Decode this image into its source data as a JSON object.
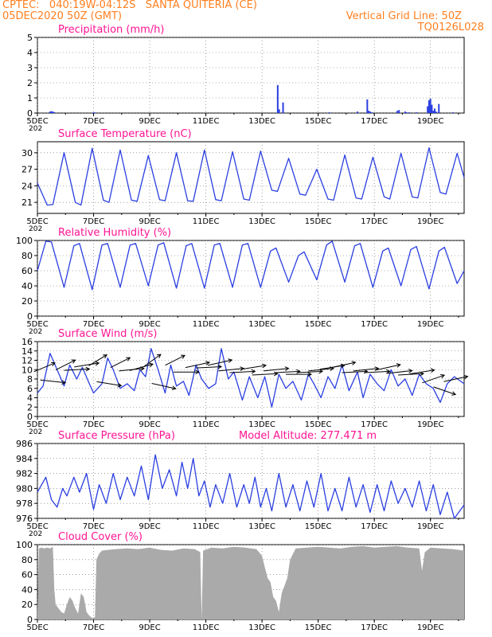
{
  "header": {
    "line1": "CPTEC:   040:19W-04:12S   SANTA QUITERIA (CE)",
    "line2": "05DEC2020 50Z (GMT)",
    "grid_note": "Vertical Grid Line: 50Z",
    "code": "TQ0126L028"
  },
  "colors": {
    "header": "#ff7f1f",
    "title": "#ff1493",
    "series": "#2b3fe0",
    "cloud": "#aaaaaa",
    "axis": "#000000",
    "grid": "#666666"
  },
  "x_axis": {
    "ticks": [
      "5DEC",
      "7DEC",
      "9DEC",
      "11DEC",
      "13DEC",
      "15DEC",
      "17DEC",
      "19DEC"
    ],
    "tick_days": [
      5,
      7,
      9,
      11,
      13,
      15,
      17,
      19
    ],
    "range_days": [
      5,
      20.2
    ],
    "fragment": "202"
  },
  "chart_data": [
    {
      "id": "precip",
      "type": "bar",
      "title": "Precipitation (mm/h)",
      "ylim": [
        0,
        5
      ],
      "yticks": [
        0,
        1,
        2,
        3,
        4,
        5
      ],
      "x_days": [
        5.45,
        5.5,
        5.55,
        5.6,
        7.0,
        7.05,
        13.56,
        13.61,
        13.75,
        15.4,
        16.4,
        16.75,
        16.8,
        16.85,
        16.92,
        17.82,
        17.88,
        18.1,
        18.15,
        18.25,
        18.5,
        18.9,
        18.95,
        19.0,
        19.05,
        19.1,
        19.15,
        19.2,
        19.3,
        19.8
      ],
      "values": [
        0.1,
        0.12,
        0.1,
        0.06,
        0.05,
        0.04,
        1.85,
        0.25,
        0.7,
        0.05,
        0.1,
        0.9,
        0.15,
        0.1,
        0.05,
        0.15,
        0.2,
        0.1,
        0.05,
        0.05,
        0.05,
        0.45,
        0.85,
        0.95,
        0.55,
        0.15,
        0.3,
        0.1,
        0.6,
        0.05
      ]
    },
    {
      "id": "temp",
      "type": "line",
      "title": "Surface Temperature (nC)",
      "ylim": [
        19,
        32
      ],
      "yticks": [
        21,
        24,
        27,
        30
      ],
      "x_days": [
        5.0,
        5.35,
        5.55,
        5.95,
        6.35,
        6.55,
        6.95,
        7.35,
        7.55,
        7.95,
        8.35,
        8.55,
        8.95,
        9.35,
        9.55,
        9.95,
        10.35,
        10.55,
        10.95,
        11.35,
        11.55,
        11.95,
        12.35,
        12.55,
        12.95,
        13.35,
        13.55,
        13.95,
        14.35,
        14.55,
        14.95,
        15.35,
        15.55,
        15.95,
        16.35,
        16.55,
        16.95,
        17.35,
        17.55,
        17.95,
        18.35,
        18.55,
        18.95,
        19.35,
        19.55,
        19.95,
        20.2
      ],
      "values": [
        24.5,
        20.5,
        20.6,
        30.0,
        21.0,
        20.5,
        30.8,
        21.4,
        21.0,
        30.5,
        21.4,
        21.2,
        29.5,
        21.5,
        21.3,
        30.0,
        21.3,
        21.2,
        30.5,
        21.5,
        21.3,
        30.2,
        21.6,
        21.4,
        30.3,
        23.2,
        23.0,
        29.0,
        22.5,
        22.3,
        27.0,
        21.6,
        21.4,
        29.6,
        21.8,
        21.6,
        29.2,
        22.0,
        21.6,
        29.9,
        22.0,
        21.8,
        30.9,
        22.8,
        22.5,
        29.9,
        25.5
      ]
    },
    {
      "id": "rh",
      "type": "line",
      "title": "Relative Humidity (%)",
      "ylim": [
        0,
        100
      ],
      "yticks": [
        0,
        20,
        40,
        60,
        80,
        100
      ],
      "x_days": [
        5.0,
        5.3,
        5.5,
        5.95,
        6.3,
        6.5,
        6.95,
        7.3,
        7.5,
        7.95,
        8.3,
        8.5,
        8.95,
        9.3,
        9.5,
        9.95,
        10.3,
        10.5,
        10.95,
        11.3,
        11.5,
        11.95,
        12.3,
        12.5,
        12.95,
        13.3,
        13.5,
        13.95,
        14.3,
        14.5,
        14.95,
        15.3,
        15.5,
        15.95,
        16.3,
        16.5,
        16.95,
        17.3,
        17.5,
        17.95,
        18.3,
        18.5,
        18.95,
        19.3,
        19.5,
        19.95,
        20.2
      ],
      "values": [
        60,
        99,
        98,
        38,
        93,
        96,
        35,
        94,
        96,
        38,
        94,
        96,
        40,
        94,
        97,
        37,
        93,
        96,
        37,
        94,
        96,
        38,
        94,
        96,
        38,
        86,
        90,
        45,
        80,
        85,
        48,
        94,
        99,
        45,
        93,
        96,
        38,
        86,
        90,
        40,
        88,
        92,
        36,
        86,
        91,
        43,
        60
      ]
    },
    {
      "id": "wind",
      "type": "line",
      "title": "Surface Wind (m/s)",
      "ylim": [
        0,
        16
      ],
      "yticks": [
        0,
        2,
        4,
        6,
        8,
        10,
        12,
        14,
        16
      ],
      "x_days": [
        5.0,
        5.2,
        5.45,
        5.7,
        5.95,
        6.15,
        6.4,
        6.6,
        6.85,
        7.0,
        7.3,
        7.5,
        7.7,
        7.95,
        8.2,
        8.45,
        8.65,
        8.85,
        9.05,
        9.3,
        9.55,
        9.75,
        9.95,
        10.2,
        10.4,
        10.65,
        10.85,
        11.1,
        11.35,
        11.55,
        11.8,
        12.0,
        12.3,
        12.55,
        12.85,
        13.1,
        13.35,
        13.6,
        13.85,
        14.1,
        14.4,
        14.65,
        14.85,
        15.1,
        15.35,
        15.6,
        15.85,
        16.1,
        16.4,
        16.6,
        16.85,
        17.1,
        17.35,
        17.6,
        17.85,
        18.1,
        18.35,
        18.6,
        18.85,
        19.1,
        19.35,
        19.6,
        19.85,
        20.2
      ],
      "values": [
        5.0,
        6.5,
        13.5,
        10.0,
        6.5,
        11.0,
        8.0,
        10.5,
        7.0,
        5.0,
        7.0,
        12.5,
        10.0,
        6.0,
        7.0,
        5.5,
        10.0,
        8.5,
        14.5,
        10.0,
        5.0,
        11.0,
        6.5,
        7.5,
        4.5,
        11.0,
        8.0,
        6.0,
        7.0,
        14.5,
        8.0,
        9.5,
        3.5,
        8.5,
        4.0,
        8.5,
        2.0,
        9.0,
        6.0,
        7.5,
        3.5,
        9.0,
        7.0,
        4.0,
        8.5,
        6.0,
        11.0,
        5.5,
        9.5,
        4.0,
        9.0,
        7.0,
        5.5,
        10.0,
        6.5,
        8.0,
        4.5,
        9.0,
        7.0,
        6.0,
        3.0,
        7.0,
        8.5,
        7.0
      ],
      "arrows": {
        "x_days": [
          5.25,
          5.55,
          6.0,
          6.4,
          6.75,
          7.15,
          7.55,
          7.95,
          8.35,
          8.7,
          9.1,
          9.5,
          9.9,
          10.3,
          10.7,
          11.1,
          11.5,
          11.9,
          12.3,
          12.7,
          13.1,
          13.5,
          13.9,
          14.3,
          14.7,
          15.1,
          15.5,
          15.9,
          16.3,
          16.7,
          17.1,
          17.5,
          17.9,
          18.3,
          18.7,
          19.1,
          19.5,
          19.9
        ],
        "direction_deg": [
          125,
          80,
          130,
          95,
          105,
          135,
          75,
          130,
          100,
          115,
          140,
          70,
          130,
          90,
          110,
          95,
          110,
          100,
          95,
          105,
          95,
          100,
          95,
          90,
          95,
          100,
          105,
          110,
          95,
          100,
          95,
          110,
          100,
          95,
          105,
          120,
          60,
          110
        ],
        "speed": [
          10.5,
          7.5,
          11.0,
          10.0,
          11.0,
          12.0,
          7.0,
          11.5,
          10.0,
          10.5,
          12.0,
          6.5,
          12.0,
          9.5,
          11.0,
          10.5,
          11.5,
          10.0,
          9.5,
          10.5,
          9.0,
          10.0,
          9.5,
          9.0,
          9.5,
          10.0,
          10.5,
          11.0,
          9.5,
          10.0,
          9.5,
          10.5,
          9.5,
          9.0,
          9.5,
          8.0,
          5.5,
          8.0
        ]
      }
    },
    {
      "id": "pressure",
      "type": "line",
      "title": "Surface Pressure (hPa)",
      "annotation": "Model Altitude: 277.471 m",
      "ylim": [
        976,
        986
      ],
      "yticks": [
        976,
        978,
        980,
        982,
        984,
        986
      ],
      "x_days": [
        5.0,
        5.3,
        5.5,
        5.7,
        5.9,
        6.05,
        6.3,
        6.5,
        6.75,
        7.0,
        7.2,
        7.45,
        7.7,
        7.95,
        8.2,
        8.45,
        8.7,
        8.95,
        9.2,
        9.45,
        9.7,
        9.95,
        10.15,
        10.35,
        10.55,
        10.75,
        10.95,
        11.15,
        11.35,
        11.6,
        11.85,
        12.1,
        12.35,
        12.55,
        12.75,
        12.95,
        13.15,
        13.35,
        13.6,
        13.85,
        14.1,
        14.35,
        14.6,
        14.85,
        15.1,
        15.35,
        15.6,
        15.85,
        16.1,
        16.35,
        16.6,
        16.85,
        17.1,
        17.35,
        17.6,
        17.85,
        18.1,
        18.35,
        18.6,
        18.85,
        19.1,
        19.35,
        19.6,
        19.85,
        20.2
      ],
      "values": [
        979.5,
        981.5,
        978.5,
        977.5,
        980.0,
        979.0,
        981.5,
        979.5,
        982.0,
        977.2,
        980.5,
        978.0,
        982.0,
        978.5,
        981.5,
        979.0,
        983.0,
        978.5,
        984.5,
        980.0,
        982.5,
        979.0,
        983.5,
        980.0,
        984.0,
        979.0,
        981.0,
        977.5,
        980.5,
        978.0,
        982.0,
        977.5,
        980.5,
        978.0,
        981.5,
        977.5,
        980.0,
        977.0,
        982.0,
        977.5,
        980.5,
        977.0,
        981.0,
        977.5,
        982.0,
        977.0,
        980.0,
        977.0,
        981.5,
        977.5,
        980.5,
        976.8,
        980.5,
        977.0,
        981.0,
        978.0,
        980.0,
        977.5,
        981.0,
        977.0,
        980.5,
        976.5,
        979.5,
        976.0,
        977.8
      ]
    },
    {
      "id": "cloud",
      "type": "area",
      "title": "Cloud Cover (%)",
      "ylim": [
        0,
        100
      ],
      "yticks": [
        0,
        20,
        40,
        60,
        80,
        100
      ],
      "x_days": [
        5.0,
        5.05,
        5.15,
        5.25,
        5.35,
        5.45,
        5.55,
        5.6,
        5.65,
        5.75,
        5.85,
        5.95,
        6.05,
        6.15,
        6.25,
        6.35,
        6.45,
        6.55,
        6.65,
        6.75,
        6.85,
        6.95,
        7.05,
        7.1,
        7.2,
        7.3,
        7.5,
        7.8,
        8.2,
        8.6,
        9.0,
        9.4,
        9.8,
        10.2,
        10.6,
        10.8,
        10.85,
        10.9,
        11.2,
        11.6,
        12.0,
        12.4,
        12.8,
        13.0,
        13.1,
        13.2,
        13.3,
        13.4,
        13.5,
        13.6,
        13.7,
        13.8,
        13.9,
        14.0,
        14.2,
        14.6,
        15.0,
        15.4,
        15.8,
        16.2,
        16.6,
        17.0,
        17.4,
        17.8,
        18.2,
        18.6,
        18.7,
        18.8,
        19.0,
        19.4,
        19.8,
        20.2
      ],
      "values": [
        10,
        95,
        96,
        95,
        96,
        95,
        97,
        40,
        20,
        15,
        10,
        8,
        20,
        30,
        25,
        15,
        8,
        35,
        30,
        10,
        5,
        2,
        3,
        80,
        88,
        92,
        93,
        94,
        95,
        94,
        96,
        93,
        92,
        95,
        94,
        90,
        0,
        92,
        96,
        95,
        97,
        96,
        94,
        85,
        70,
        55,
        50,
        30,
        25,
        10,
        35,
        45,
        55,
        80,
        95,
        96,
        97,
        96,
        95,
        97,
        98,
        96,
        97,
        98,
        96,
        95,
        65,
        90,
        96,
        95,
        94,
        92
      ]
    }
  ]
}
